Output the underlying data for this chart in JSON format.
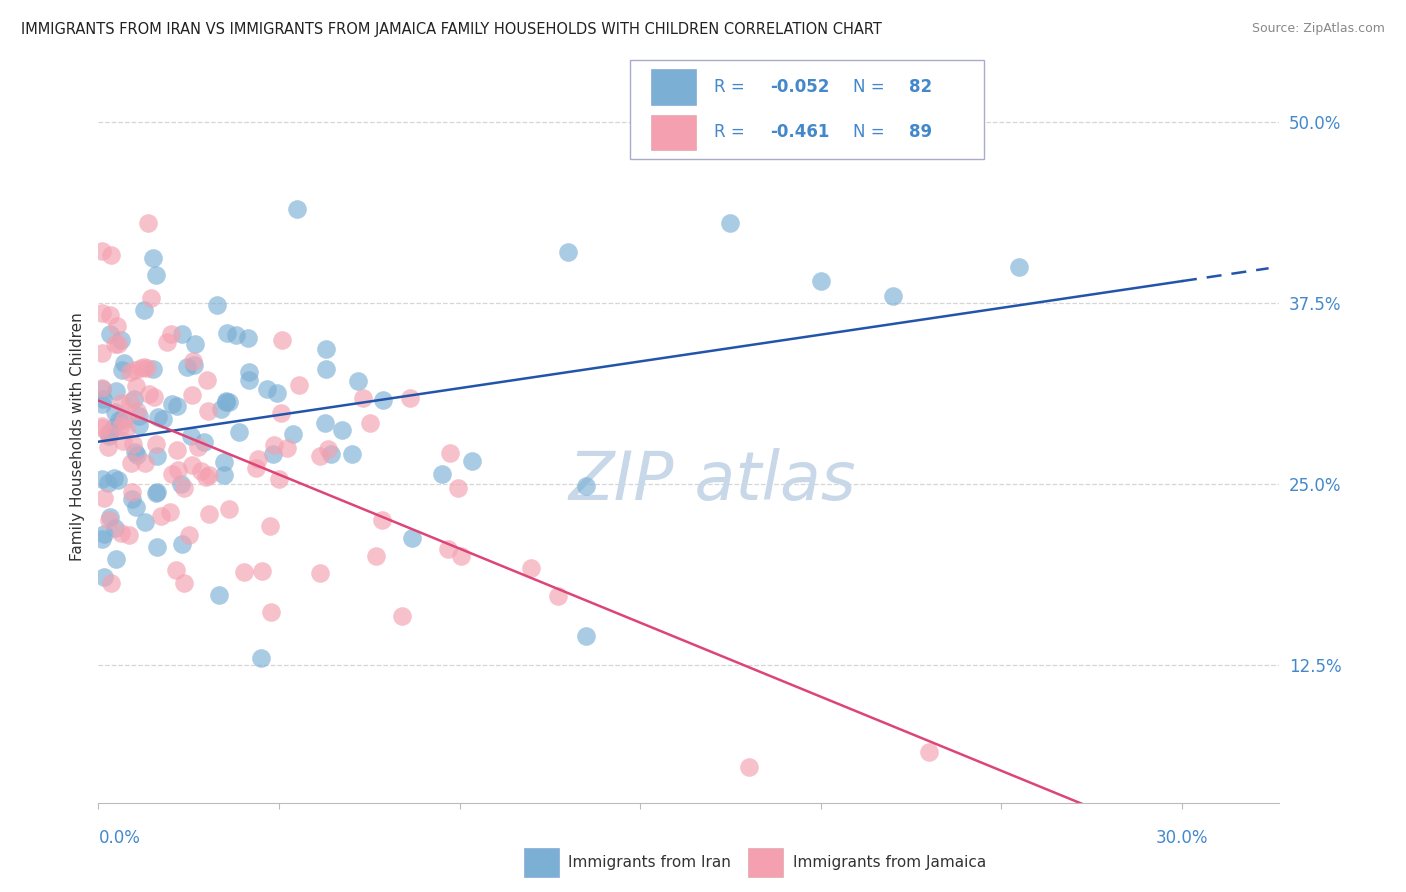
{
  "title": "IMMIGRANTS FROM IRAN VS IMMIGRANTS FROM JAMAICA FAMILY HOUSEHOLDS WITH CHILDREN CORRELATION CHART",
  "source": "Source: ZipAtlas.com",
  "ylabel": "Family Households with Children",
  "yticks": [
    "12.5%",
    "25.0%",
    "37.5%",
    "50.0%"
  ],
  "ytick_values": [
    0.125,
    0.25,
    0.375,
    0.5
  ],
  "xmin": 0.0,
  "xmax": 0.3,
  "ymin": 0.03,
  "ymax": 0.535,
  "iran_R": -0.052,
  "iran_N": 82,
  "jamaica_R": -0.461,
  "jamaica_N": 89,
  "iran_color": "#7BAFD4",
  "jamaica_color": "#F4A0B0",
  "iran_line_color": "#2255AA",
  "jamaica_line_color": "#DD4477",
  "text_blue": "#4488CC",
  "background_color": "#FFFFFF",
  "grid_color": "#CCCCCC",
  "watermark_color": "#C8D8E8"
}
